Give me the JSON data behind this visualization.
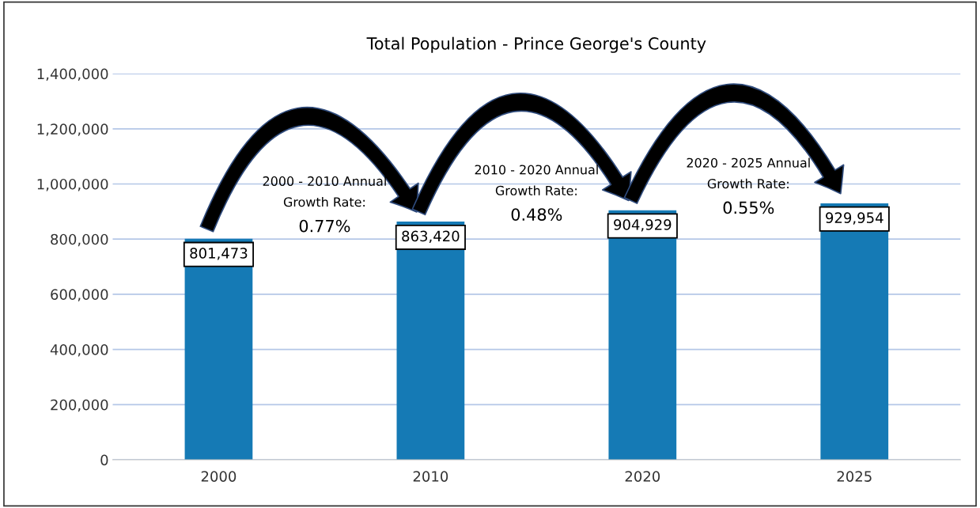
{
  "chart_data": {
    "type": "bar",
    "title": "Total Population - Prince George's County",
    "categories": [
      "2000",
      "2010",
      "2020",
      "2025"
    ],
    "values": [
      801473,
      863420,
      904929,
      929954
    ],
    "value_labels": [
      "801,473",
      "863,420",
      "904,929",
      "929,954"
    ],
    "color": "#157ab5",
    "ylim": [
      0,
      1400000
    ],
    "yticks": [
      0,
      {
        "value": 200000,
        "label": "200,000"
      },
      {
        "value": 400000,
        "label": "400,000"
      },
      {
        "value": 600000,
        "label": "600,000"
      },
      {
        "value": 800000,
        "label": "800,000"
      },
      {
        "value": 1000000,
        "label": "1,000,000"
      },
      {
        "value": 1200000,
        "label": "1,200,000"
      },
      {
        "value": 1400000,
        "label": "1,400,000"
      }
    ],
    "grid": "y",
    "annotations": [
      "2000 - 2010 Annual\nGrowth Rate:",
      "0.77%",
      "2010 - 2020 Annual\nGrowth Rate:",
      "0.48%",
      "2020 - 2025 Annual\nGrowth Rate:",
      "0.55%"
    ]
  }
}
